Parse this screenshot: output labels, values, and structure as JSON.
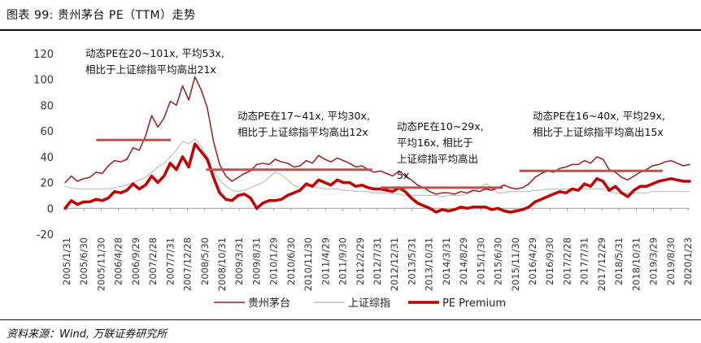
{
  "header": {
    "title": "图表 99: 贵州茅台 PE（TTM）走势"
  },
  "footer": {
    "source": "资料来源：Wind, 万联证券研究所"
  },
  "chart_data": {
    "type": "line",
    "title": "贵州茅台 PE（TTM）走势",
    "xlabel": "",
    "ylabel": "",
    "ylim": [
      -20,
      120
    ],
    "yticks": [
      -20,
      0,
      20,
      40,
      60,
      80,
      100,
      120
    ],
    "x_labels": [
      "2005/1/31",
      "2005/6/30",
      "2005/11/30",
      "2006/4/28",
      "2006/9/29",
      "2007/2/28",
      "2007/7/31",
      "2007/12/28",
      "2008/5/30",
      "2008/10/31",
      "2009/3/31",
      "2009/8/31",
      "2010/1/29",
      "2010/6/30",
      "2010/11/30",
      "2011/4/29",
      "2011/9/30",
      "2012/2/29",
      "2012/7/31",
      "2012/12/31",
      "2013/5/31",
      "2013/10/31",
      "2014/3/31",
      "2014/8/29",
      "2015/1/30",
      "2015/6/30",
      "2015/11/30",
      "2016/4/29",
      "2016/9/30",
      "2017/2/28",
      "2017/7/31",
      "2017/12/29",
      "2018/5/31",
      "2018/10/31",
      "2019/3/29",
      "2019/8/30",
      "2020/1/23"
    ],
    "legend": [
      {
        "name": "贵州茅台",
        "color": "#9b1b1b"
      },
      {
        "name": "上证综指",
        "color": "#bfbfbf"
      },
      {
        "name": "PE Premium",
        "color": "#c00000"
      }
    ],
    "series": [
      {
        "name": "贵州茅台",
        "color": "#9b1b1b",
        "width": 1.5,
        "values": [
          20,
          25,
          21,
          23,
          24,
          28,
          27,
          33,
          37,
          36,
          38,
          47,
          45,
          56,
          72,
          63,
          70,
          83,
          80,
          95,
          84,
          102,
          92,
          78,
          52,
          34,
          25,
          21,
          24,
          27,
          29,
          34,
          35,
          34,
          38,
          36,
          35,
          32,
          33,
          37,
          35,
          41,
          38,
          36,
          39,
          37,
          35,
          32,
          33,
          30,
          28,
          29,
          27,
          25,
          29,
          25,
          22,
          18,
          16,
          13,
          11,
          12,
          12,
          11,
          13,
          12,
          14,
          13,
          15,
          14,
          16,
          18,
          16,
          15,
          16,
          19,
          24,
          27,
          29,
          28,
          31,
          32,
          34,
          34,
          37,
          35,
          40,
          38,
          30,
          28,
          24,
          22,
          25,
          28,
          30,
          33,
          34,
          36,
          37,
          35,
          33,
          34
        ]
      },
      {
        "name": "上证综指",
        "color": "#bfbfbf",
        "width": 1.2,
        "values": [
          17,
          16,
          15,
          15,
          15,
          15,
          15,
          15,
          16,
          17,
          18,
          20,
          22,
          24,
          28,
          32,
          35,
          40,
          45,
          52,
          50,
          54,
          48,
          40,
          28,
          22,
          17,
          14,
          13,
          14,
          16,
          18,
          20,
          24,
          28,
          26,
          22,
          18,
          16,
          17,
          17,
          16,
          15,
          15,
          15,
          14,
          14,
          13,
          13,
          13,
          12,
          12,
          12,
          11,
          11,
          10,
          10,
          10,
          10,
          10,
          10,
          9,
          10,
          10,
          10,
          11,
          13,
          16,
          19,
          16,
          12,
          12,
          13,
          13,
          13,
          13,
          14,
          14,
          15,
          15,
          15,
          15,
          15,
          15,
          15,
          15,
          15,
          15,
          13,
          12,
          11,
          12,
          12,
          12,
          12,
          13,
          13,
          13,
          13,
          13,
          13,
          13
        ]
      },
      {
        "name": "PE Premium",
        "color": "#c00000",
        "width": 3.5,
        "values": [
          0,
          6,
          3,
          5,
          5,
          7,
          6,
          8,
          13,
          12,
          14,
          19,
          15,
          18,
          25,
          20,
          25,
          35,
          30,
          40,
          32,
          50,
          44,
          38,
          24,
          12,
          7,
          6,
          10,
          11,
          8,
          0,
          4,
          6,
          6,
          7,
          10,
          12,
          14,
          19,
          17,
          22,
          20,
          18,
          22,
          20,
          20,
          17,
          18,
          16,
          15,
          15,
          14,
          13,
          16,
          13,
          8,
          4,
          2,
          0,
          -3,
          -1,
          -2,
          -1,
          1,
          0,
          1,
          1,
          1,
          -1,
          0,
          -2,
          -3,
          -2,
          -1,
          1,
          5,
          7,
          9,
          11,
          13,
          12,
          15,
          14,
          19,
          17,
          23,
          21,
          14,
          17,
          12,
          9,
          14,
          17,
          17,
          19,
          21,
          22,
          23,
          22,
          21,
          21
        ]
      }
    ],
    "reference_lines": [
      {
        "label_id": "ann1",
        "y": 53,
        "x_start": 15,
        "x_end": 51
      },
      {
        "label_id": "ann2",
        "y": 30,
        "x_start": 68,
        "x_end": 148
      },
      {
        "label_id": "ann3",
        "y": 16,
        "x_start": 152,
        "x_end": 211
      },
      {
        "label_id": "ann4",
        "y": 29,
        "x_start": 219,
        "x_end": 288
      }
    ],
    "annotations": [
      {
        "id": "ann1",
        "lines": [
          "动态PE在20~101x, 平均53x,",
          "相比于上证综指平均高出21x"
        ]
      },
      {
        "id": "ann2",
        "lines": [
          "动态PE在17~41x, 平均30x,",
          "相比于上证综指平均高出12x"
        ]
      },
      {
        "id": "ann3",
        "lines": [
          "动态PE在10~29x,",
          "平均16x, 相比于",
          "上证综指平均高出",
          "5x"
        ]
      },
      {
        "id": "ann4",
        "lines": [
          "动态PE在16~40x, 平均29x,",
          "相比于上证综指平均高出15x"
        ]
      }
    ],
    "x_total_months": 301
  }
}
